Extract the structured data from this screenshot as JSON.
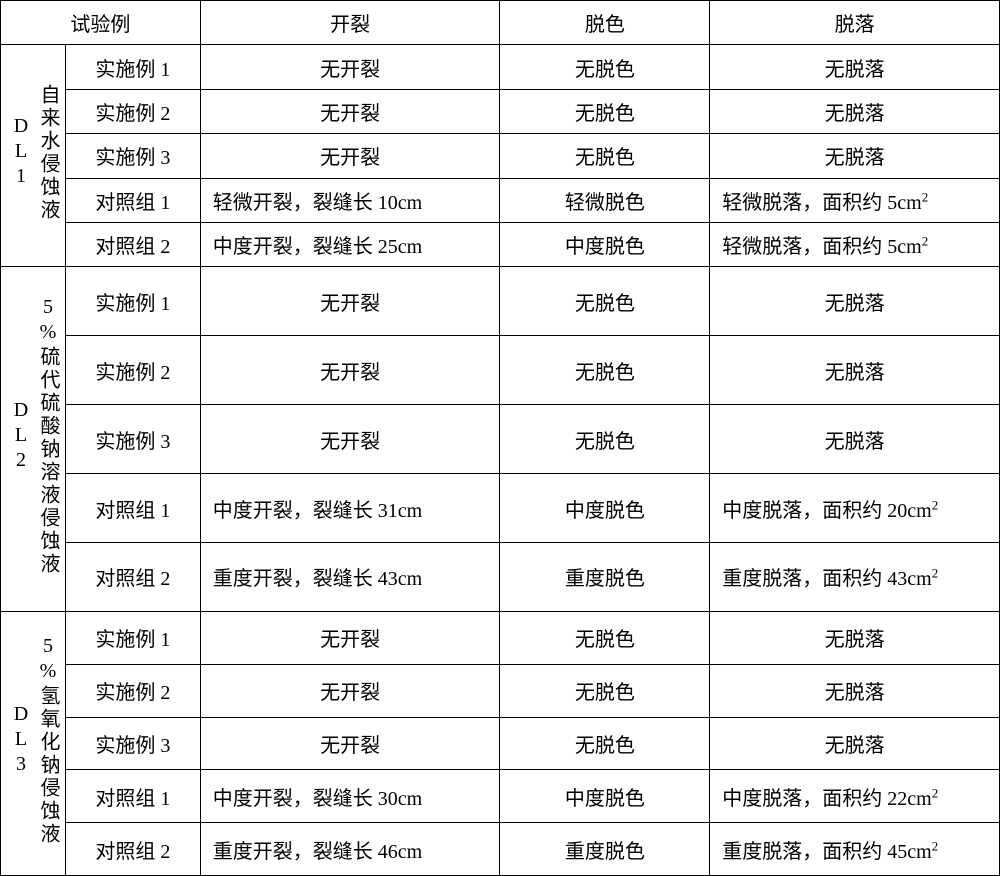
{
  "table": {
    "background_color": "#ffffff",
    "border_color": "#000000",
    "text_color": "#000000",
    "font_size_pt": 15,
    "columns": [
      {
        "key": "group",
        "width_pct": 6.5,
        "align": "center"
      },
      {
        "key": "sample",
        "width_pct": 13.5,
        "align": "center"
      },
      {
        "key": "crack",
        "width_pct": 30,
        "align": "center"
      },
      {
        "key": "fade",
        "width_pct": 21,
        "align": "center"
      },
      {
        "key": "peel",
        "width_pct": 29,
        "align": "center"
      }
    ],
    "header": {
      "test_example": "试验例",
      "crack": "开裂",
      "fade": "脱色",
      "peel": "脱落"
    },
    "groups": [
      {
        "label_lines": [
          "自来水侵蚀液",
          "DL1"
        ],
        "rows": [
          {
            "sample": "实施例 1",
            "crack": "无开裂",
            "fade": "无脱色",
            "peel": "无脱落"
          },
          {
            "sample": "实施例 2",
            "crack": "无开裂",
            "fade": "无脱色",
            "peel": "无脱落"
          },
          {
            "sample": "实施例 3",
            "crack": "无开裂",
            "fade": "无脱色",
            "peel": "无脱落"
          },
          {
            "sample": "对照组 1",
            "crack": "轻微开裂，裂缝长 10cm",
            "crack_align": "left",
            "fade": "轻微脱色",
            "peel": "轻微脱落，面积约 5cm²",
            "peel_align": "left"
          },
          {
            "sample": "对照组 2",
            "crack": "中度开裂，裂缝长 25cm",
            "crack_align": "left",
            "fade": "中度脱色",
            "peel": "轻微脱落，面积约 5cm²",
            "peel_align": "left"
          }
        ]
      },
      {
        "label_lines": [
          "5%硫代硫酸钠溶液侵蚀液",
          "DL2"
        ],
        "rows": [
          {
            "sample": "实施例 1",
            "crack": "无开裂",
            "fade": "无脱色",
            "peel": "无脱落"
          },
          {
            "sample": "实施例 2",
            "crack": "无开裂",
            "fade": "无脱色",
            "peel": "无脱落"
          },
          {
            "sample": "实施例 3",
            "crack": "无开裂",
            "fade": "无脱色",
            "peel": "无脱落"
          },
          {
            "sample": "对照组 1",
            "crack": "中度开裂，裂缝长 31cm",
            "crack_align": "left",
            "fade": "中度脱色",
            "peel": "中度脱落，面积约 20cm²",
            "peel_align": "left"
          },
          {
            "sample": "对照组 2",
            "crack": "重度开裂，裂缝长 43cm",
            "crack_align": "left",
            "fade": "重度脱色",
            "peel": "重度脱落，面积约 43cm²",
            "peel_align": "left"
          }
        ]
      },
      {
        "label_lines": [
          "5%氢氧化钠侵蚀液",
          "DL3"
        ],
        "rows": [
          {
            "sample": "实施例 1",
            "crack": "无开裂",
            "fade": "无脱色",
            "peel": "无脱落"
          },
          {
            "sample": "实施例 2",
            "crack": "无开裂",
            "fade": "无脱色",
            "peel": "无脱落"
          },
          {
            "sample": "实施例 3",
            "crack": "无开裂",
            "fade": "无脱色",
            "peel": "无脱落"
          },
          {
            "sample": "对照组 1",
            "crack": "中度开裂，裂缝长 30cm",
            "crack_align": "left",
            "fade": "中度脱色",
            "peel": "中度脱落，面积约 22cm²",
            "peel_align": "left"
          },
          {
            "sample": "对照组 2",
            "crack": "重度开裂，裂缝长 46cm",
            "crack_align": "left",
            "fade": "重度脱色",
            "peel": "重度脱落，面积约 45cm²",
            "peel_align": "left"
          }
        ]
      }
    ]
  }
}
